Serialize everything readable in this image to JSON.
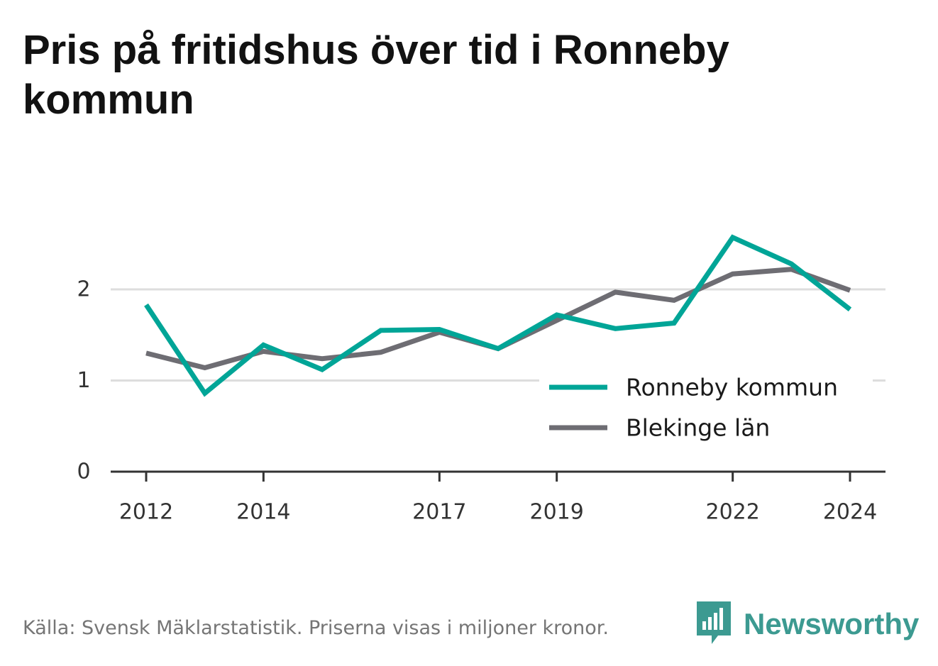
{
  "title": "Pris på fritidshus över tid i Ronneby kommun",
  "footer": {
    "source": "Källa: Svensk Mäklarstatistik. Priserna visas i miljoner kronor.",
    "brand": "Newsworthy",
    "brand_icon": "bar-chart-speech-bubble-icon"
  },
  "colors": {
    "ronneby": "#00a597",
    "blekinge": "#6e6d73",
    "grid": "#dddddd",
    "axis": "#333333",
    "brand": "#3c9a91"
  },
  "chart_data": {
    "type": "line",
    "title": "Pris på fritidshus över tid i Ronneby kommun",
    "xlabel": "",
    "ylabel": "",
    "x": [
      2012,
      2013,
      2014,
      2015,
      2016,
      2017,
      2018,
      2019,
      2020,
      2021,
      2022,
      2023,
      2024
    ],
    "x_ticks": [
      "2012",
      "2014",
      "2017",
      "2019",
      "2022",
      "2024"
    ],
    "y_ticks": [
      "0",
      "1",
      "2"
    ],
    "ylim": [
      0,
      2.65
    ],
    "grid": true,
    "legend_position": "bottom-right",
    "series": [
      {
        "name": "Ronneby kommun",
        "color": "#00a597",
        "values": [
          1.83,
          0.86,
          1.39,
          1.12,
          1.55,
          1.56,
          1.35,
          1.72,
          1.57,
          1.63,
          2.57,
          2.28,
          1.78
        ]
      },
      {
        "name": "Blekinge län",
        "color": "#6e6d73",
        "values": [
          1.3,
          1.14,
          1.32,
          1.24,
          1.31,
          1.53,
          1.35,
          1.66,
          1.97,
          1.88,
          2.17,
          2.22,
          1.99
        ]
      }
    ]
  }
}
